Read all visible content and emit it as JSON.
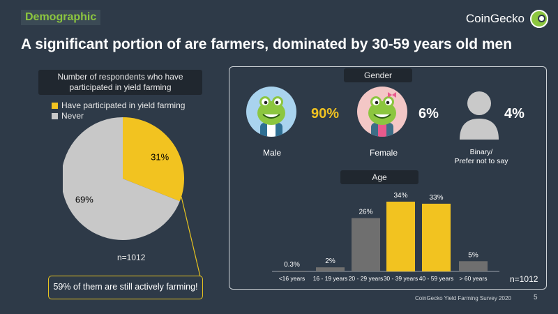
{
  "header": {
    "section_tag": "Demographic",
    "brand": "CoinGecko",
    "headline": "A significant portion of are farmers, dominated by 30-59 years old men"
  },
  "pie": {
    "title_line1": "Number of respondents who have",
    "title_line2": "participated in yield farming",
    "n_label": "n=1012",
    "callout": "59% of them are still actively farming!"
  },
  "gender": {
    "header": "Gender",
    "male": {
      "label": "Male",
      "pct": "90%"
    },
    "female": {
      "label": "Female",
      "pct": "6%"
    },
    "other": {
      "label_line1": "Binary/",
      "label_line2": "Prefer not to say",
      "pct": "4%"
    }
  },
  "age": {
    "header": "Age",
    "n_label": "n=1012"
  },
  "footer": {
    "source": "CoinGecko Yield Farming Survey 2020",
    "page": "5"
  },
  "colors": {
    "background": "#2e3a48",
    "accent_yellow": "#f2c320",
    "grey_bar": "#6f6f6f",
    "pie_grey": "#c8c8c8",
    "brand_green": "#8cc63f"
  },
  "chart_data": [
    {
      "type": "pie",
      "title": "Number of respondents who have participated in yield farming",
      "categories": [
        "Have participated in yield farming",
        "Never"
      ],
      "values": [
        31,
        69
      ],
      "labels": [
        "31%",
        "69%"
      ],
      "colors": [
        "#f2c320",
        "#c8c8c8"
      ]
    },
    {
      "type": "bar",
      "title": "Age",
      "categories": [
        "<16 years",
        "16 - 19 years",
        "20 - 29 years",
        "30 - 39 years",
        "40 - 59 years",
        "> 60  years"
      ],
      "values": [
        0.3,
        2,
        26,
        34,
        33,
        5
      ],
      "labels": [
        "0.3%",
        "2%",
        "26%",
        "34%",
        "33%",
        "5%"
      ],
      "highlight": [
        false,
        false,
        false,
        true,
        true,
        false
      ],
      "ylim": [
        0,
        34
      ]
    }
  ]
}
